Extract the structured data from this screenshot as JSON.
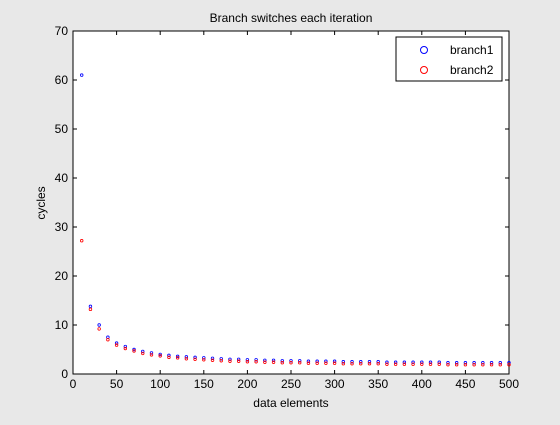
{
  "chart_data": {
    "type": "scatter",
    "title": "Branch switches each iteration",
    "xlabel": "data elements",
    "ylabel": "cycles",
    "xlim": [
      0,
      500
    ],
    "ylim": [
      0,
      70
    ],
    "xticks": [
      0,
      50,
      100,
      150,
      200,
      250,
      300,
      350,
      400,
      450,
      500
    ],
    "yticks": [
      0,
      10,
      20,
      30,
      40,
      50,
      60,
      70
    ],
    "grid": false,
    "legend_position": "top-right",
    "x": [
      10,
      20,
      30,
      40,
      50,
      60,
      70,
      80,
      90,
      100,
      110,
      120,
      130,
      140,
      150,
      160,
      170,
      180,
      190,
      200,
      210,
      220,
      230,
      240,
      250,
      260,
      270,
      280,
      290,
      300,
      310,
      320,
      330,
      340,
      350,
      360,
      370,
      380,
      390,
      400,
      410,
      420,
      430,
      440,
      450,
      460,
      470,
      480,
      490,
      500
    ],
    "series": [
      {
        "name": "branch1",
        "color": "#0000ff",
        "values": [
          61.0,
          13.8,
          10.0,
          7.5,
          6.3,
          5.6,
          5.0,
          4.6,
          4.3,
          4.0,
          3.8,
          3.6,
          3.5,
          3.4,
          3.3,
          3.2,
          3.1,
          3.0,
          3.0,
          2.9,
          2.9,
          2.8,
          2.8,
          2.7,
          2.7,
          2.7,
          2.6,
          2.6,
          2.6,
          2.6,
          2.5,
          2.5,
          2.5,
          2.5,
          2.5,
          2.4,
          2.4,
          2.4,
          2.4,
          2.4,
          2.4,
          2.4,
          2.3,
          2.3,
          2.3,
          2.3,
          2.3,
          2.3,
          2.3,
          2.3
        ]
      },
      {
        "name": "branch2",
        "color": "#ff0000",
        "values": [
          27.2,
          13.2,
          9.2,
          7.0,
          5.9,
          5.2,
          4.7,
          4.2,
          3.9,
          3.7,
          3.4,
          3.3,
          3.1,
          3.0,
          2.9,
          2.8,
          2.7,
          2.6,
          2.6,
          2.5,
          2.5,
          2.4,
          2.4,
          2.3,
          2.3,
          2.3,
          2.2,
          2.2,
          2.2,
          2.2,
          2.1,
          2.1,
          2.1,
          2.1,
          2.1,
          2.0,
          2.0,
          2.0,
          2.0,
          2.0,
          2.0,
          2.0,
          1.9,
          1.9,
          1.9,
          1.9,
          1.9,
          1.9,
          1.9,
          1.9
        ]
      }
    ]
  }
}
